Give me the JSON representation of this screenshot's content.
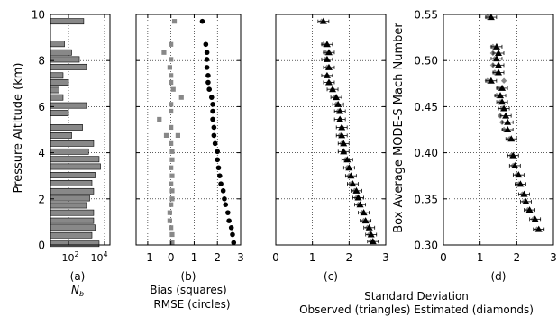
{
  "chart_data": [
    {
      "type": "bar",
      "orientation": "horizontal",
      "panel_label": "(a)",
      "xlabel": "N_b",
      "ylabel": "Pressure Altitude (km)",
      "x_scale": "log",
      "xlim": [
        10,
        20000
      ],
      "ylim": [
        0,
        10
      ],
      "x_ticks": [
        "10^2",
        "10^4"
      ],
      "y_ticks": [
        "0",
        "2",
        "4",
        "6",
        "8",
        "10"
      ],
      "grid": true,
      "bar_color": "#888888",
      "bars": [
        {
          "y": 0.05,
          "value": 5000
        },
        {
          "y": 0.42,
          "value": 2000
        },
        {
          "y": 0.75,
          "value": 3000
        },
        {
          "y": 1.05,
          "value": 2500
        },
        {
          "y": 1.4,
          "value": 2500
        },
        {
          "y": 1.72,
          "value": 1000
        },
        {
          "y": 2.03,
          "value": 1500
        },
        {
          "y": 2.33,
          "value": 2500
        },
        {
          "y": 2.68,
          "value": 2000
        },
        {
          "y": 3.03,
          "value": 3000
        },
        {
          "y": 3.4,
          "value": 6000
        },
        {
          "y": 3.72,
          "value": 5000
        },
        {
          "y": 4.05,
          "value": 1300
        },
        {
          "y": 4.4,
          "value": 2500
        },
        {
          "y": 4.75,
          "value": 150
        },
        {
          "y": 5.1,
          "value": 600
        },
        {
          "y": 5.72,
          "value": 100
        },
        {
          "y": 6.05,
          "value": 1000
        },
        {
          "y": 6.4,
          "value": 50
        },
        {
          "y": 6.72,
          "value": 30
        },
        {
          "y": 7.05,
          "value": 100
        },
        {
          "y": 7.35,
          "value": 50
        },
        {
          "y": 7.72,
          "value": 1000
        },
        {
          "y": 8.05,
          "value": 400
        },
        {
          "y": 8.35,
          "value": 150
        },
        {
          "y": 8.72,
          "value": 60
        },
        {
          "y": 9.7,
          "value": 700
        }
      ]
    },
    {
      "type": "scatter",
      "panel_label": "(b)",
      "xlabel": "Bias (squares)",
      "xlabel2": "RMSE (circles)",
      "xlim": [
        -1.5,
        3
      ],
      "ylim": [
        0,
        10
      ],
      "x_ticks": [
        "-1",
        "0",
        "1",
        "2",
        "3"
      ],
      "grid": true,
      "series": [
        {
          "marker": "square",
          "color": "#888888",
          "points": [
            [
              0.05,
              0.1
            ],
            [
              0.05,
              0.45
            ],
            [
              0.0,
              0.75
            ],
            [
              -0.05,
              1.05
            ],
            [
              -0.05,
              1.4
            ],
            [
              0.0,
              1.75
            ],
            [
              0.05,
              2.0
            ],
            [
              0.05,
              2.35
            ],
            [
              0.0,
              2.65
            ],
            [
              0.05,
              3.0
            ],
            [
              0.0,
              3.35
            ],
            [
              0.05,
              3.7
            ],
            [
              0.05,
              4.05
            ],
            [
              0.0,
              4.4
            ],
            [
              -0.2,
              4.75
            ],
            [
              0.3,
              4.75
            ],
            [
              0.0,
              5.1
            ],
            [
              -0.5,
              5.45
            ],
            [
              0.0,
              5.8
            ],
            [
              0.0,
              6.1
            ],
            [
              0.45,
              6.4
            ],
            [
              0.1,
              6.75
            ],
            [
              0.0,
              7.05
            ],
            [
              0.0,
              7.35
            ],
            [
              -0.05,
              7.7
            ],
            [
              0.0,
              8.05
            ],
            [
              -0.3,
              8.35
            ],
            [
              0.0,
              8.7
            ],
            [
              0.15,
              9.7
            ]
          ]
        },
        {
          "marker": "circle",
          "color": "#000000",
          "points": [
            [
              2.7,
              0.1
            ],
            [
              2.65,
              0.45
            ],
            [
              2.6,
              0.75
            ],
            [
              2.5,
              1.05
            ],
            [
              2.45,
              1.4
            ],
            [
              2.35,
              1.75
            ],
            [
              2.3,
              2.0
            ],
            [
              2.25,
              2.35
            ],
            [
              2.15,
              2.65
            ],
            [
              2.1,
              3.0
            ],
            [
              2.05,
              3.35
            ],
            [
              2.0,
              3.7
            ],
            [
              2.0,
              4.05
            ],
            [
              1.9,
              4.4
            ],
            [
              1.85,
              4.75
            ],
            [
              1.85,
              5.1
            ],
            [
              1.8,
              5.45
            ],
            [
              1.8,
              5.8
            ],
            [
              1.8,
              6.1
            ],
            [
              1.75,
              6.4
            ],
            [
              1.65,
              6.75
            ],
            [
              1.6,
              7.05
            ],
            [
              1.6,
              7.35
            ],
            [
              1.55,
              7.7
            ],
            [
              1.55,
              8.05
            ],
            [
              1.55,
              8.35
            ],
            [
              1.5,
              8.7
            ],
            [
              1.35,
              9.7
            ]
          ]
        }
      ]
    },
    {
      "type": "scatter",
      "panel_label": "(c)",
      "xlabel": "Standard Deviation",
      "xlabel2": "Observed (triangles) Estimated (diamonds)",
      "xlim": [
        0,
        3
      ],
      "ylim": [
        0,
        10
      ],
      "x_ticks": [
        "0",
        "1",
        "2",
        "3"
      ],
      "grid": true,
      "series": [
        {
          "marker": "diamond",
          "color": "#888888",
          "points": [
            [
              2.6,
              0.15
            ],
            [
              2.55,
              0.45
            ],
            [
              2.5,
              0.75
            ],
            [
              2.4,
              1.05
            ],
            [
              2.35,
              1.4
            ],
            [
              2.25,
              1.75
            ],
            [
              2.2,
              2.05
            ],
            [
              2.15,
              2.35
            ],
            [
              2.05,
              2.65
            ],
            [
              2.0,
              3.0
            ],
            [
              1.95,
              3.35
            ],
            [
              1.9,
              3.7
            ],
            [
              1.85,
              4.05
            ],
            [
              1.8,
              4.4
            ],
            [
              1.75,
              4.75
            ],
            [
              1.8,
              5.1
            ],
            [
              1.75,
              5.45
            ],
            [
              1.7,
              5.8
            ],
            [
              1.65,
              6.1
            ],
            [
              1.6,
              6.4
            ],
            [
              1.55,
              6.75
            ],
            [
              1.45,
              7.05
            ],
            [
              1.4,
              7.35
            ],
            [
              1.4,
              7.7
            ],
            [
              1.35,
              8.05
            ],
            [
              1.35,
              8.35
            ],
            [
              1.3,
              8.7
            ],
            [
              1.25,
              9.7
            ]
          ]
        },
        {
          "marker": "triangle",
          "color": "#000000",
          "error_bars": true,
          "points": [
            [
              2.65,
              0.15
            ],
            [
              2.6,
              0.45
            ],
            [
              2.55,
              0.75
            ],
            [
              2.45,
              1.05
            ],
            [
              2.4,
              1.4
            ],
            [
              2.3,
              1.75
            ],
            [
              2.25,
              2.05
            ],
            [
              2.2,
              2.35
            ],
            [
              2.1,
              2.65
            ],
            [
              2.05,
              3.0
            ],
            [
              2.0,
              3.35
            ],
            [
              1.95,
              3.7
            ],
            [
              1.85,
              4.05
            ],
            [
              1.85,
              4.4
            ],
            [
              1.8,
              4.75
            ],
            [
              1.8,
              5.1
            ],
            [
              1.75,
              5.45
            ],
            [
              1.75,
              5.8
            ],
            [
              1.7,
              6.1
            ],
            [
              1.65,
              6.4
            ],
            [
              1.55,
              6.75
            ],
            [
              1.45,
              7.05
            ],
            [
              1.4,
              7.35
            ],
            [
              1.45,
              7.7
            ],
            [
              1.4,
              8.05
            ],
            [
              1.45,
              8.35
            ],
            [
              1.4,
              8.7
            ],
            [
              1.3,
              9.7
            ]
          ]
        }
      ]
    },
    {
      "type": "scatter",
      "panel_label": "(d)",
      "ylabel_right": "Box Average MODE-S Mach Number",
      "xlim": [
        0,
        3
      ],
      "ylim": [
        0.3,
        0.55
      ],
      "x_ticks": [
        "0",
        "1",
        "2",
        "3"
      ],
      "y_ticks": [
        "0.30",
        "0.35",
        "0.40",
        "0.45",
        "0.50",
        "0.55"
      ],
      "grid": true,
      "series": [
        {
          "marker": "diamond",
          "color": "#888888",
          "points": [
            [
              2.55,
              0.317
            ],
            [
              2.45,
              0.328
            ],
            [
              2.3,
              0.338
            ],
            [
              2.2,
              0.347
            ],
            [
              2.15,
              0.355
            ],
            [
              2.05,
              0.366
            ],
            [
              2.0,
              0.376
            ],
            [
              1.9,
              0.386
            ],
            [
              1.85,
              0.397
            ],
            [
              1.8,
              0.415
            ],
            [
              1.65,
              0.425
            ],
            [
              1.6,
              0.433
            ],
            [
              1.55,
              0.44
            ],
            [
              1.6,
              0.448
            ],
            [
              1.55,
              0.455
            ],
            [
              1.45,
              0.462
            ],
            [
              1.5,
              0.47
            ],
            [
              1.65,
              0.478
            ],
            [
              1.2,
              0.478
            ],
            [
              1.4,
              0.487
            ],
            [
              1.35,
              0.495
            ],
            [
              1.4,
              0.502
            ],
            [
              1.35,
              0.508
            ],
            [
              1.35,
              0.515
            ],
            [
              1.2,
              0.547
            ]
          ]
        },
        {
          "marker": "triangle",
          "color": "#000000",
          "error_bars": true,
          "points": [
            [
              2.6,
              0.317
            ],
            [
              2.5,
              0.328
            ],
            [
              2.35,
              0.338
            ],
            [
              2.25,
              0.347
            ],
            [
              2.2,
              0.355
            ],
            [
              2.1,
              0.366
            ],
            [
              2.05,
              0.376
            ],
            [
              1.95,
              0.386
            ],
            [
              1.9,
              0.397
            ],
            [
              1.85,
              0.415
            ],
            [
              1.75,
              0.425
            ],
            [
              1.75,
              0.433
            ],
            [
              1.7,
              0.44
            ],
            [
              1.65,
              0.448
            ],
            [
              1.6,
              0.455
            ],
            [
              1.55,
              0.462
            ],
            [
              1.6,
              0.47
            ],
            [
              1.3,
              0.478
            ],
            [
              1.5,
              0.487
            ],
            [
              1.5,
              0.495
            ],
            [
              1.45,
              0.502
            ],
            [
              1.5,
              0.508
            ],
            [
              1.45,
              0.515
            ],
            [
              1.3,
              0.547
            ]
          ]
        }
      ]
    }
  ]
}
